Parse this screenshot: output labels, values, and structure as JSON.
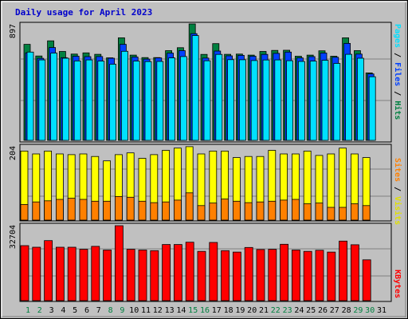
{
  "title": "Daily usage for April 2023",
  "panels": {
    "top": {
      "max_label": "897",
      "legend": {
        "pages": "Pages",
        "files": "Files",
        "hits": "Hits",
        "sep": " / "
      }
    },
    "middle": {
      "max_label": "204",
      "legend": {
        "sites": "Sites",
        "visits": "Visits",
        "sep": " / "
      }
    },
    "bottom": {
      "max_label": "32704",
      "legend": {
        "kbytes": "KBytes"
      }
    }
  },
  "colors": {
    "background": "#c0c0c0",
    "title": "#0000cc",
    "hits": "#008040",
    "files": "#0040ff",
    "pages": "#00e0ff",
    "visits": "#ffff00",
    "sites": "#ff8000",
    "kbytes": "#ff0000",
    "weekday_label": "#000000",
    "weekend_label": "#008040"
  },
  "chart_data": [
    {
      "type": "bar",
      "title": "Daily usage for April 2023",
      "categories": [
        "1",
        "2",
        "3",
        "4",
        "5",
        "6",
        "7",
        "8",
        "9",
        "10",
        "11",
        "12",
        "13",
        "14",
        "15",
        "16",
        "17",
        "18",
        "19",
        "20",
        "21",
        "22",
        "23",
        "24",
        "25",
        "26",
        "27",
        "28",
        "29",
        "30",
        "31"
      ],
      "weekend_days": [
        "1",
        "2",
        "8",
        "9",
        "15",
        "16",
        "22",
        "23",
        "29",
        "30"
      ],
      "ylim": [
        0,
        897
      ],
      "series": [
        {
          "name": "Hits",
          "values": [
            740,
            650,
            767,
            685,
            665,
            674,
            663,
            636,
            790,
            657,
            638,
            638,
            691,
            714,
            897,
            662,
            745,
            663,
            665,
            657,
            685,
            693,
            694,
            648,
            657,
            690,
            648,
            790,
            691,
            520,
            0
          ]
        },
        {
          "name": "Files",
          "values": [
            674,
            632,
            715,
            637,
            648,
            645,
            646,
            633,
            740,
            642,
            626,
            635,
            672,
            691,
            822,
            634,
            688,
            651,
            655,
            648,
            662,
            670,
            680,
            635,
            645,
            673,
            640,
            747,
            665,
            512,
            0
          ]
        },
        {
          "name": "Pages",
          "values": [
            680,
            620,
            673,
            633,
            612,
            620,
            611,
            587,
            686,
            611,
            607,
            608,
            635,
            646,
            807,
            613,
            662,
            622,
            621,
            615,
            619,
            620,
            614,
            608,
            611,
            617,
            593,
            663,
            633,
            490,
            0
          ]
        }
      ]
    },
    {
      "type": "bar",
      "categories": [
        "1",
        "2",
        "3",
        "4",
        "5",
        "6",
        "7",
        "8",
        "9",
        "10",
        "11",
        "12",
        "13",
        "14",
        "15",
        "16",
        "17",
        "18",
        "19",
        "20",
        "21",
        "22",
        "23",
        "24",
        "25",
        "26",
        "27",
        "28",
        "29",
        "30",
        "31"
      ],
      "weekend_days": [
        "1",
        "2",
        "8",
        "9",
        "15",
        "16",
        "22",
        "23",
        "29",
        "30"
      ],
      "ylim": [
        0,
        204
      ],
      "series": [
        {
          "name": "Visits",
          "values": [
            190,
            182,
            190,
            182,
            180,
            182,
            175,
            163,
            180,
            185,
            170,
            180,
            192,
            198,
            202,
            182,
            190,
            190,
            172,
            175,
            175,
            192,
            182,
            182,
            190,
            178,
            182,
            198,
            182,
            172,
            0
          ]
        },
        {
          "name": "Sites",
          "values": [
            43,
            50,
            53,
            57,
            60,
            57,
            52,
            52,
            65,
            63,
            52,
            48,
            50,
            55,
            75,
            40,
            47,
            58,
            52,
            48,
            50,
            52,
            55,
            57,
            45,
            47,
            35,
            35,
            45,
            40,
            0
          ]
        }
      ]
    },
    {
      "type": "bar",
      "categories": [
        "1",
        "2",
        "3",
        "4",
        "5",
        "6",
        "7",
        "8",
        "9",
        "10",
        "11",
        "12",
        "13",
        "14",
        "15",
        "16",
        "17",
        "18",
        "19",
        "20",
        "21",
        "22",
        "23",
        "24",
        "25",
        "26",
        "27",
        "28",
        "29",
        "30",
        "31"
      ],
      "weekend_days": [
        "1",
        "2",
        "8",
        "9",
        "15",
        "16",
        "22",
        "23",
        "29",
        "30"
      ],
      "ylim": [
        0,
        32704
      ],
      "series": [
        {
          "name": "KBytes",
          "values": [
            24000,
            23300,
            26200,
            23300,
            23300,
            22400,
            23700,
            22100,
            32704,
            22400,
            22100,
            21800,
            24500,
            24500,
            25500,
            21500,
            25400,
            21800,
            21200,
            23200,
            22300,
            22400,
            24600,
            22100,
            21500,
            22000,
            21200,
            26000,
            24400,
            17800,
            0
          ]
        }
      ]
    }
  ]
}
